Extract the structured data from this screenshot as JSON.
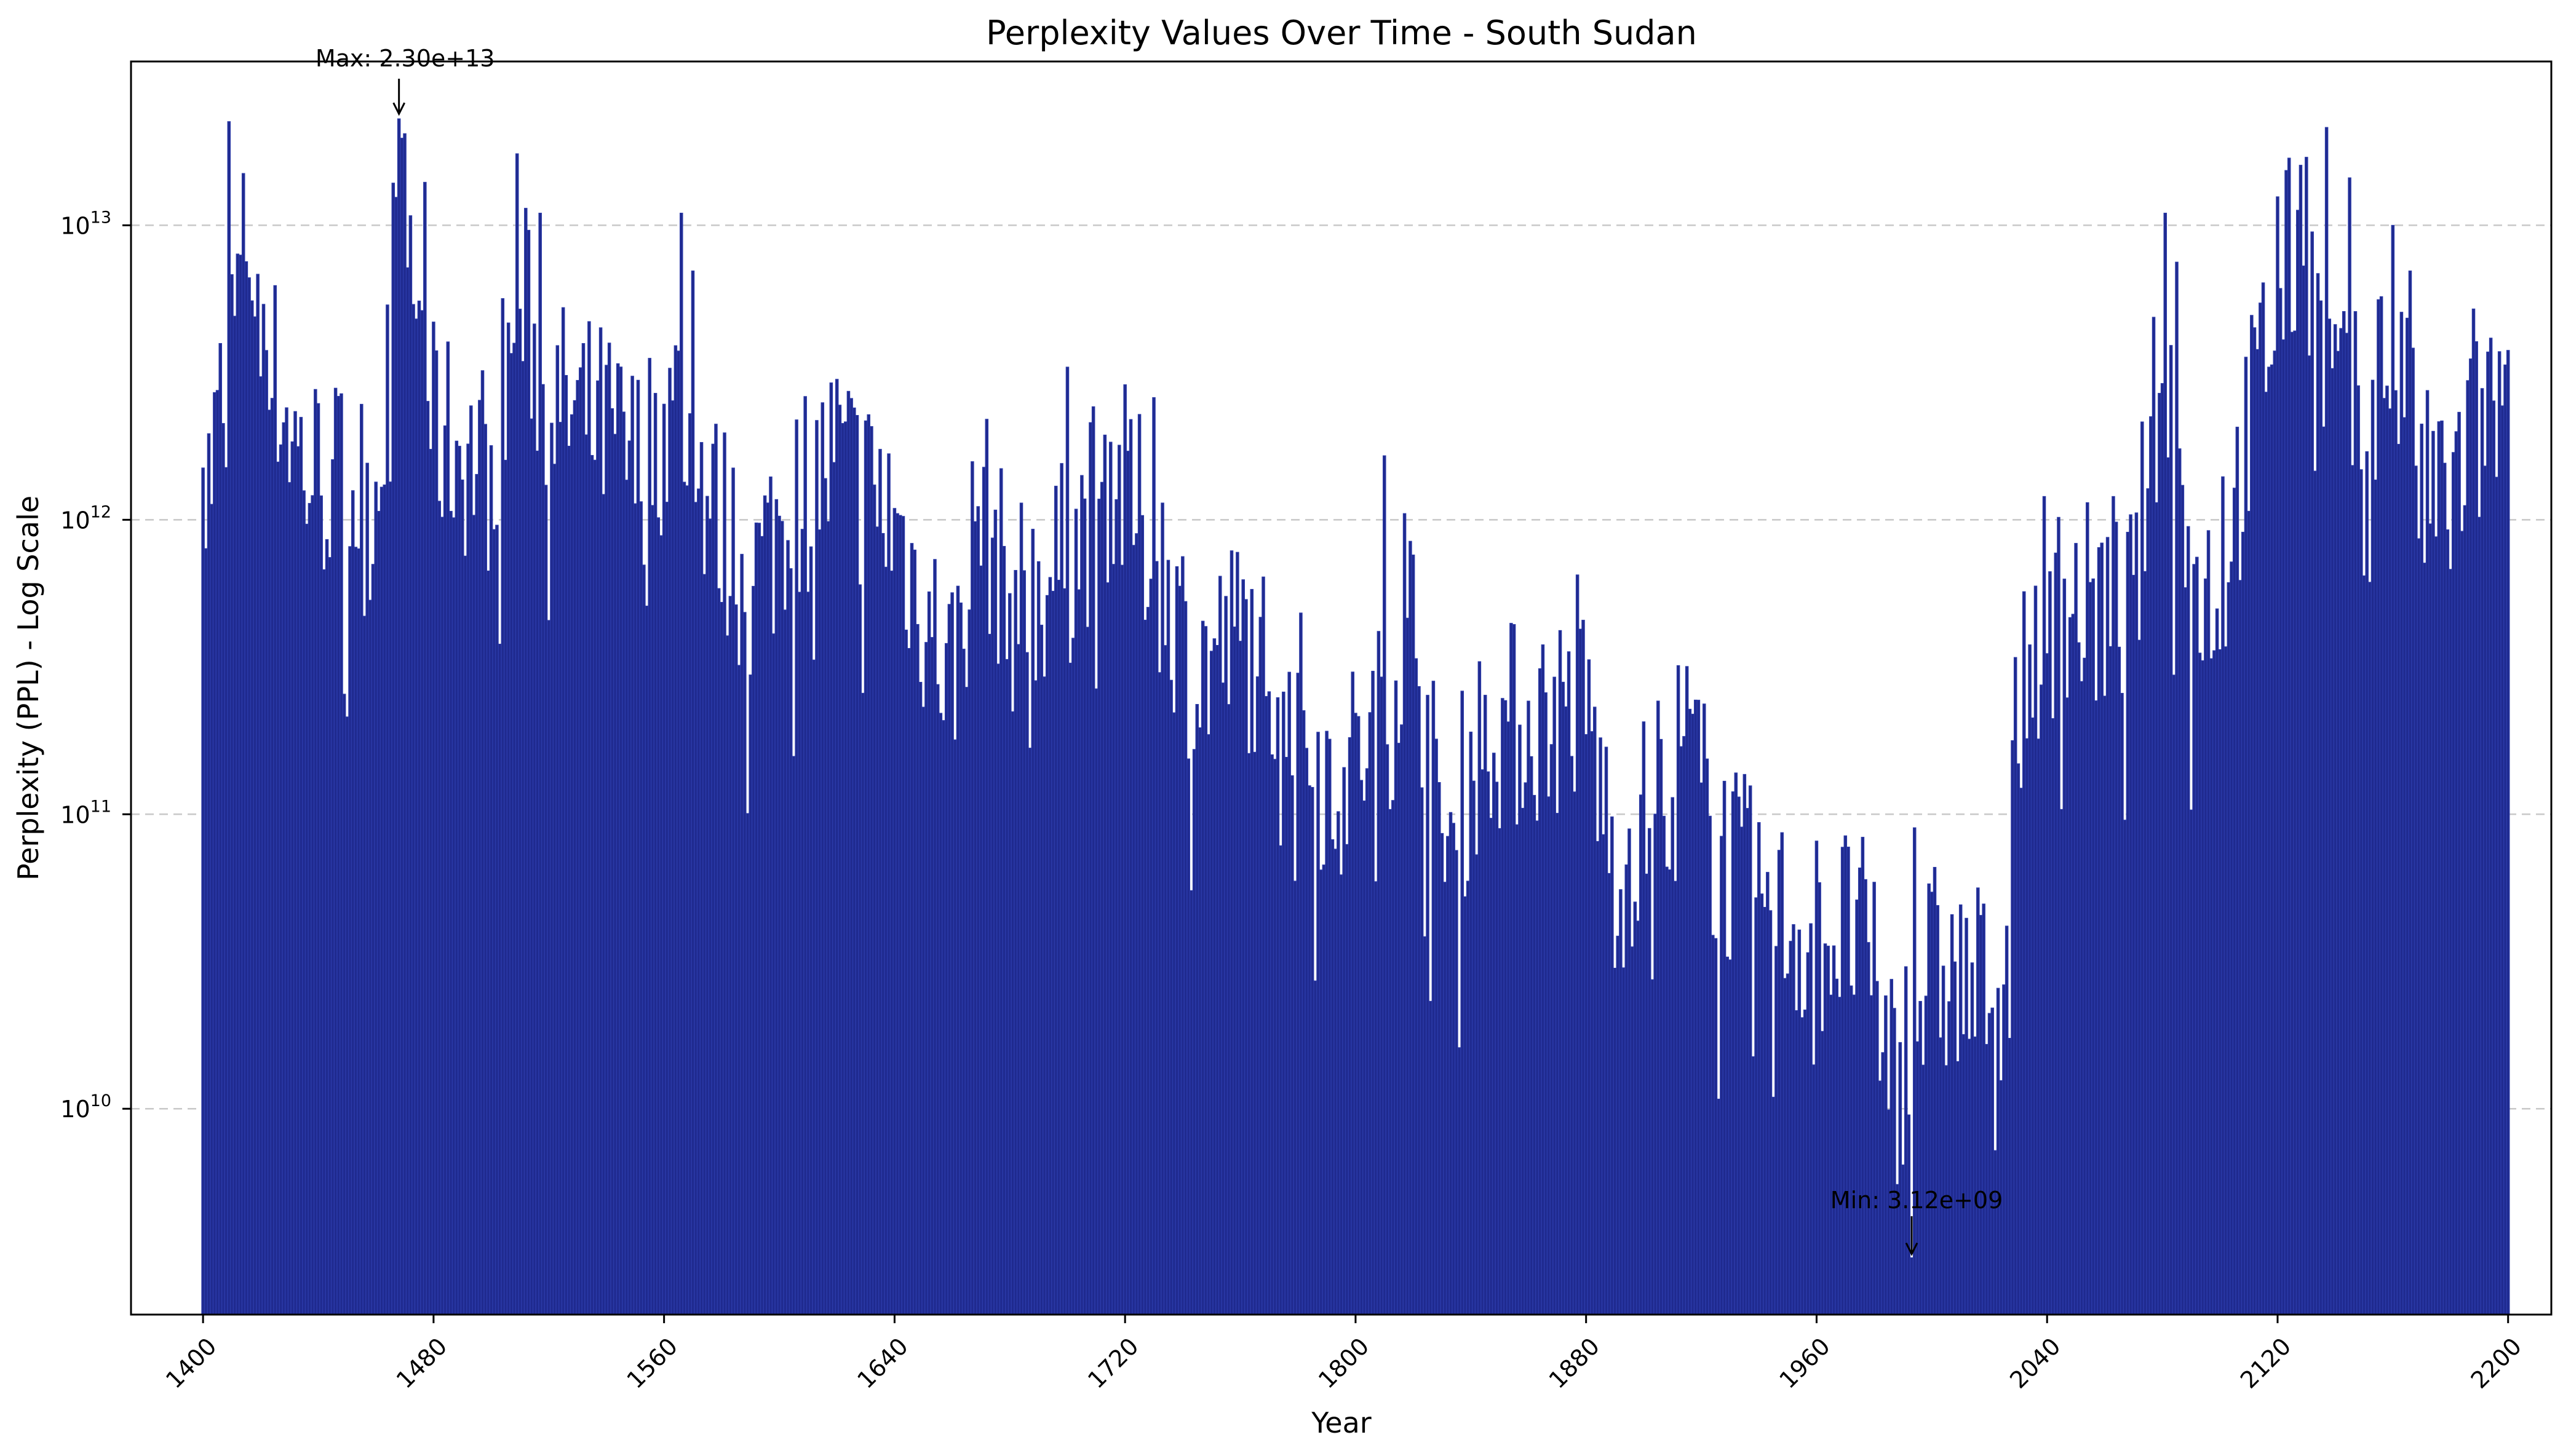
{
  "chart_data": {
    "type": "bar",
    "title": "Perplexity Values Over Time - South Sudan",
    "xlabel": "Year",
    "ylabel": "Perplexity (PPL) - Log Scale",
    "yscale": "log",
    "xlim": [
      1375,
      2215
    ],
    "ylim": [
      2000000000.0,
      36000000000000.0
    ],
    "xticks": [
      1400,
      1480,
      1560,
      1640,
      1720,
      1800,
      1880,
      1960,
      2040,
      2120,
      2200
    ],
    "yticks": [
      {
        "value": 10000000000.0,
        "base": "10",
        "exp": "10"
      },
      {
        "value": 100000000000.0,
        "base": "10",
        "exp": "11"
      },
      {
        "value": 1000000000000.0,
        "base": "10",
        "exp": "12"
      },
      {
        "value": 10000000000000.0,
        "base": "10",
        "exp": "13"
      }
    ],
    "grid": "y-dashed",
    "bar_color": "#1f2a8f",
    "x_start": 1400,
    "x_end": 2200,
    "anchors": [
      [
        1400,
        1000000000000.0
      ],
      [
        1410,
        4000000000000.0
      ],
      [
        1415,
        10000000000000.0
      ],
      [
        1425,
        3000000000000.0
      ],
      [
        1435,
        1500000000000.0
      ],
      [
        1450,
        1300000000000.0
      ],
      [
        1460,
        1200000000000.0
      ],
      [
        1468,
        12000000000000.0
      ],
      [
        1475,
        5000000000000.0
      ],
      [
        1480,
        2000000000000.0
      ],
      [
        1500,
        1500000000000.0
      ],
      [
        1510,
        6000000000000.0
      ],
      [
        1520,
        2500000000000.0
      ],
      [
        1540,
        2000000000000.0
      ],
      [
        1550,
        1500000000000.0
      ],
      [
        1565,
        2500000000000.0
      ],
      [
        1575,
        1200000000000.0
      ],
      [
        1590,
        600000000000.0
      ],
      [
        1605,
        1200000000000.0
      ],
      [
        1620,
        1600000000000.0
      ],
      [
        1640,
        1000000000000.0
      ],
      [
        1650,
        500000000000.0
      ],
      [
        1660,
        300000000000.0
      ],
      [
        1670,
        1200000000000.0
      ],
      [
        1680,
        500000000000.0
      ],
      [
        1700,
        700000000000.0
      ],
      [
        1715,
        1500000000000.0
      ],
      [
        1730,
        800000000000.0
      ],
      [
        1745,
        300000000000.0
      ],
      [
        1760,
        400000000000.0
      ],
      [
        1775,
        300000000000.0
      ],
      [
        1790,
        130000000000.0
      ],
      [
        1800,
        150000000000.0
      ],
      [
        1810,
        200000000000.0
      ],
      [
        1820,
        500000000000.0
      ],
      [
        1830,
        70000000000.0
      ],
      [
        1845,
        200000000000.0
      ],
      [
        1860,
        200000000000.0
      ],
      [
        1880,
        250000000000.0
      ],
      [
        1890,
        60000000000.0
      ],
      [
        1905,
        120000000000.0
      ],
      [
        1915,
        180000000000.0
      ],
      [
        1925,
        80000000000.0
      ],
      [
        1940,
        50000000000.0
      ],
      [
        1955,
        40000000000.0
      ],
      [
        1975,
        40000000000.0
      ],
      [
        1985,
        16000000000.0
      ],
      [
        1990,
        15000000000.0
      ],
      [
        2000,
        30000000000.0
      ],
      [
        2015,
        25000000000.0
      ],
      [
        2025,
        30000000000.0
      ],
      [
        2030,
        250000000000.0
      ],
      [
        2040,
        500000000000.0
      ],
      [
        2055,
        500000000000.0
      ],
      [
        2070,
        500000000000.0
      ],
      [
        2080,
        4000000000000.0
      ],
      [
        2090,
        600000000000.0
      ],
      [
        2100,
        600000000000.0
      ],
      [
        2110,
        2000000000000.0
      ],
      [
        2120,
        6000000000000.0
      ],
      [
        2130,
        10000000000000.0
      ],
      [
        2135,
        4000000000000.0
      ],
      [
        2145,
        2000000000000.0
      ],
      [
        2160,
        4000000000000.0
      ],
      [
        2170,
        1200000000000.0
      ],
      [
        2180,
        1200000000000.0
      ],
      [
        2190,
        2000000000000.0
      ],
      [
        2200,
        2500000000000.0
      ]
    ],
    "spikes": [
      [
        1400,
        1500000000000.0
      ],
      [
        1409,
        22500000000000.0
      ],
      [
        1414,
        15000000000000.0
      ],
      [
        1468,
        23000000000000.0
      ],
      [
        1477,
        14000000000000.0
      ],
      [
        1509,
        17500000000000.0
      ],
      [
        1517,
        11000000000000.0
      ],
      [
        1566,
        11000000000000.0
      ],
      [
        1570,
        7000000000000.0
      ],
      [
        1620,
        3000000000000.0
      ],
      [
        1700,
        3300000000000.0
      ],
      [
        1730,
        2600000000000.0
      ],
      [
        1810,
        1650000000000.0
      ],
      [
        1817,
        1050000000000.0
      ],
      [
        1877,
        650000000000.0
      ],
      [
        1994,
        90000000000.0
      ],
      [
        2032,
        570000000000.0
      ],
      [
        2039,
        1200000000000.0
      ],
      [
        2063,
        1200000000000.0
      ],
      [
        2081,
        11000000000000.0
      ],
      [
        2085,
        7500000000000.0
      ],
      [
        2101,
        1400000000000.0
      ],
      [
        2120,
        12500000000000.0
      ],
      [
        2128,
        16000000000000.0
      ],
      [
        2132,
        9500000000000.0
      ],
      [
        2137,
        21500000000000.0
      ],
      [
        2145,
        14500000000000.0
      ],
      [
        2160,
        10000000000000.0
      ],
      [
        2166,
        7000000000000.0
      ],
      [
        2188,
        5200000000000.0
      ]
    ],
    "max": {
      "year": 1468,
      "value": 23000000000000.0,
      "label": "Max: 2.30e+13"
    },
    "min": {
      "year": 1993,
      "value": 3120000000.0,
      "label": "Min: 3.12e+09"
    }
  }
}
